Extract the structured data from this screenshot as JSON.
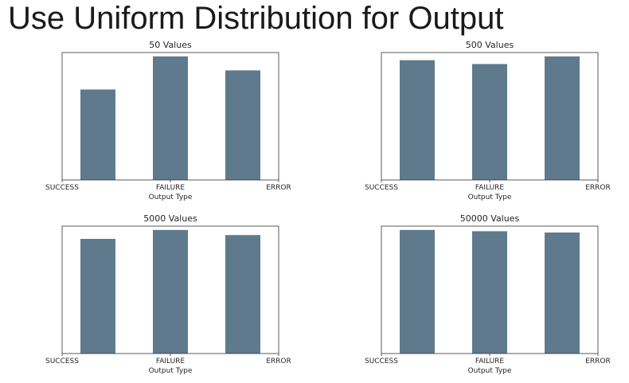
{
  "slide": {
    "title": "Use Uniform Distribution for Output"
  },
  "colors": {
    "bar": "#5f7a8d"
  },
  "chart_data": [
    {
      "type": "bar",
      "title": "50 Values",
      "xlabel": "Output Type",
      "ylabel": "",
      "categories": [
        "SUCCESS",
        "FAILURE",
        "ERROR"
      ],
      "values": [
        0.71,
        0.97,
        0.86
      ],
      "ylim": [
        0,
        1
      ]
    },
    {
      "type": "bar",
      "title": "500 Values",
      "xlabel": "Output Type",
      "ylabel": "",
      "categories": [
        "SUCCESS",
        "FAILURE",
        "ERROR"
      ],
      "values": [
        0.94,
        0.91,
        0.97
      ],
      "ylim": [
        0,
        1
      ]
    },
    {
      "type": "bar",
      "title": "5000 Values",
      "xlabel": "Output Type",
      "ylabel": "",
      "categories": [
        "SUCCESS",
        "FAILURE",
        "ERROR"
      ],
      "values": [
        0.9,
        0.97,
        0.93
      ],
      "ylim": [
        0,
        1
      ]
    },
    {
      "type": "bar",
      "title": "50000 Values",
      "xlabel": "Output Type",
      "ylabel": "",
      "categories": [
        "SUCCESS",
        "FAILURE",
        "ERROR"
      ],
      "values": [
        0.97,
        0.96,
        0.95
      ],
      "ylim": [
        0,
        1
      ]
    }
  ]
}
